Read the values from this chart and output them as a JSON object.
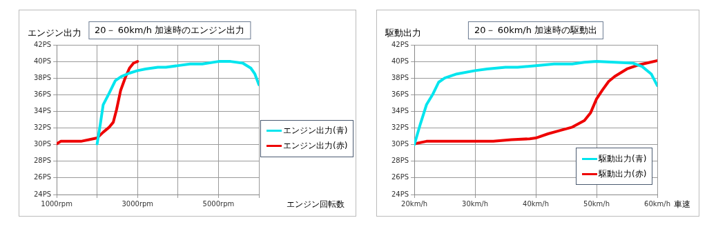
{
  "chart_data": [
    {
      "type": "line",
      "title": "20－ 60km/h 加速時のエンジン出力",
      "ylabel": "エンジン出力",
      "xlabel": "エンジン回転数",
      "xlim": [
        1000,
        6000
      ],
      "xticks": [
        {
          "value": 1000,
          "label": "1000rpm"
        },
        {
          "value": 2000,
          "label": null
        },
        {
          "value": 3000,
          "label": "3000rpm"
        },
        {
          "value": 4000,
          "label": null
        },
        {
          "value": 5000,
          "label": "5000rpm"
        },
        {
          "value": 6000,
          "label": null
        }
      ],
      "ylim": [
        24,
        42
      ],
      "yticks": [
        {
          "value": 24,
          "label": "24PS"
        },
        {
          "value": 26,
          "label": "26PS"
        },
        {
          "value": 28,
          "label": "28PS"
        },
        {
          "value": 30,
          "label": "30PS"
        },
        {
          "value": 32,
          "label": "32PS"
        },
        {
          "value": 34,
          "label": "34PS"
        },
        {
          "value": 36,
          "label": "36PS"
        },
        {
          "value": 38,
          "label": "38PS"
        },
        {
          "value": 40,
          "label": "40PS"
        },
        {
          "value": 42,
          "label": "42PS"
        }
      ],
      "grid": true,
      "legend": "right",
      "series": [
        {
          "name": "エンジン出力(青)",
          "color": "#00e5ee",
          "x": [
            2000,
            2080,
            2150,
            2300,
            2450,
            2600,
            2800,
            3000,
            3200,
            3500,
            3700,
            4000,
            4300,
            4600,
            5000,
            5300,
            5600,
            5800,
            5900,
            6000
          ],
          "values": [
            30.1,
            32.5,
            34.8,
            36.2,
            37.7,
            38.2,
            38.6,
            38.9,
            39.1,
            39.3,
            39.3,
            39.5,
            39.7,
            39.7,
            40.0,
            40.0,
            39.8,
            39.2,
            38.5,
            37.2
          ]
        },
        {
          "name": "エンジン出力(赤)",
          "color": "#ee0000",
          "x": [
            1000,
            1100,
            1300,
            1600,
            1800,
            2000,
            2150,
            2300,
            2400,
            2480,
            2580,
            2700,
            2800,
            2900,
            3000
          ],
          "values": [
            30.1,
            30.4,
            30.4,
            30.4,
            30.6,
            30.8,
            31.5,
            32.1,
            32.7,
            34.2,
            36.5,
            38.1,
            39.2,
            39.8,
            40.0
          ]
        }
      ]
    },
    {
      "type": "line",
      "title": "20－ 60km/h 加速時の駆動出",
      "ylabel": "駆動出力",
      "xlabel": "車速",
      "xlim": [
        20,
        60
      ],
      "xticks": [
        {
          "value": 20,
          "label": "20km/h"
        },
        {
          "value": 30,
          "label": "30km/h"
        },
        {
          "value": 40,
          "label": "40km/h"
        },
        {
          "value": 50,
          "label": "50km/h"
        },
        {
          "value": 60,
          "label": "60km/h"
        }
      ],
      "ylim": [
        24,
        42
      ],
      "yticks": [
        {
          "value": 24,
          "label": "24PS"
        },
        {
          "value": 26,
          "label": "26PS"
        },
        {
          "value": 28,
          "label": "28PS"
        },
        {
          "value": 30,
          "label": "30PS"
        },
        {
          "value": 32,
          "label": "32PS"
        },
        {
          "value": 34,
          "label": "34PS"
        },
        {
          "value": 36,
          "label": "36PS"
        },
        {
          "value": 38,
          "label": "38PS"
        },
        {
          "value": 40,
          "label": "40PS"
        },
        {
          "value": 42,
          "label": "42PS"
        }
      ],
      "grid": true,
      "legend": "bottom right",
      "series": [
        {
          "name": "駆動出力(青)",
          "color": "#00e5ee",
          "x": [
            20,
            21,
            22,
            23,
            24,
            25,
            27,
            30,
            32,
            35,
            37,
            40,
            43,
            46,
            48,
            50,
            53,
            56,
            57.5,
            59,
            60
          ],
          "values": [
            30.0,
            32.5,
            34.8,
            36.0,
            37.5,
            38.0,
            38.5,
            38.9,
            39.1,
            39.3,
            39.3,
            39.5,
            39.7,
            39.7,
            39.9,
            40.0,
            39.9,
            39.8,
            39.4,
            38.5,
            37.1
          ]
        },
        {
          "name": "駆動出力(赤)",
          "color": "#ee0000",
          "x": [
            20,
            22,
            25,
            30,
            33,
            36,
            39,
            40,
            42,
            44,
            46,
            48,
            49,
            50,
            51,
            52,
            53,
            55,
            57,
            60
          ],
          "values": [
            30.1,
            30.4,
            30.4,
            30.4,
            30.4,
            30.6,
            30.7,
            30.8,
            31.3,
            31.7,
            32.1,
            32.9,
            33.8,
            35.5,
            36.6,
            37.6,
            38.2,
            39.1,
            39.6,
            40.1
          ]
        }
      ]
    }
  ]
}
